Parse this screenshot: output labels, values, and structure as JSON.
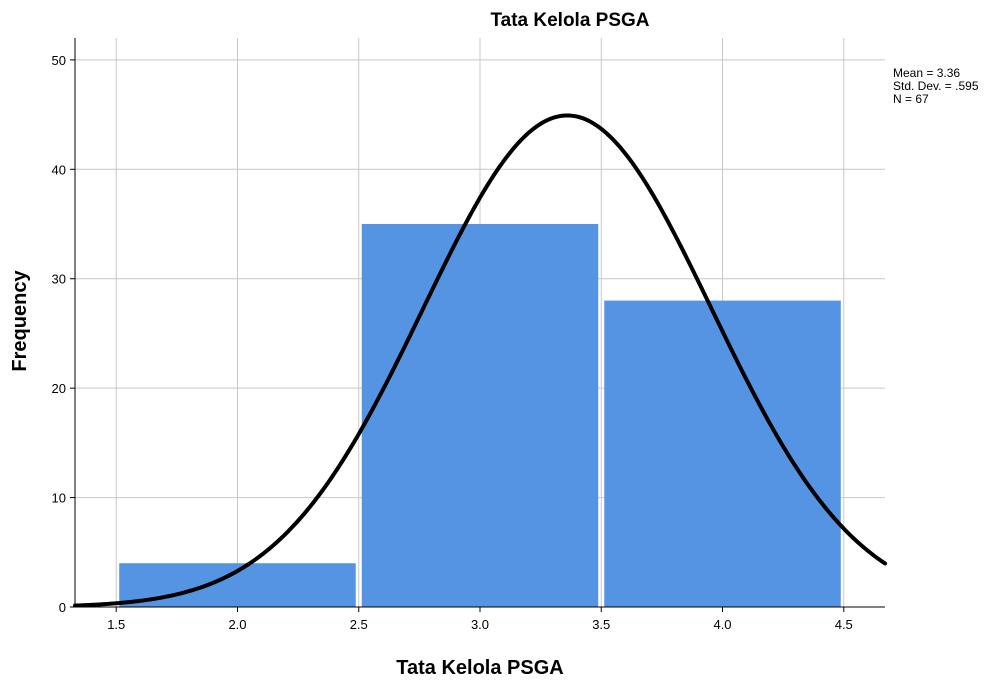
{
  "chart_data": {
    "type": "bar",
    "title": "Tata Kelola PSGA",
    "xlabel": "Tata Kelola PSGA",
    "ylabel": "Frequency",
    "bins": [
      {
        "start": 1.5,
        "end": 2.5,
        "frequency": 4
      },
      {
        "start": 2.5,
        "end": 3.5,
        "frequency": 35
      },
      {
        "start": 3.5,
        "end": 4.5,
        "frequency": 28
      }
    ],
    "xlim": [
      1.33,
      4.67
    ],
    "ylim": [
      0,
      52
    ],
    "x_ticks": [
      "1.5",
      "2.0",
      "2.5",
      "3.0",
      "3.5",
      "4.0",
      "4.5"
    ],
    "y_ticks": [
      "0",
      "10",
      "20",
      "30",
      "40",
      "50"
    ],
    "grid": true,
    "normal_curve": {
      "mean": 3.36,
      "std_dev": 0.595,
      "n": 67,
      "bin_width": 1.0
    },
    "stats_box": {
      "mean_text": "Mean = 3.36",
      "std_text": "Std. Dev. = .595",
      "n_text": "N = 67"
    },
    "colors": {
      "bar": "#5594e3",
      "curve": "#000000",
      "grid": "#c8c8c8",
      "axis": "#000000"
    }
  }
}
